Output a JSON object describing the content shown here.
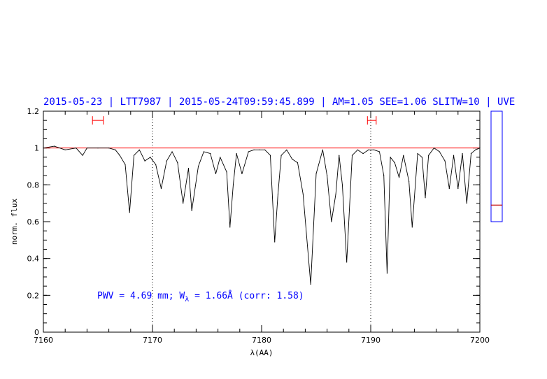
{
  "chart_data": {
    "type": "line",
    "title": "2015-05-23 | LTT7987 | 2015-05-24T09:59:45.899 | AM=1.05 SEE=1.06 SLITW=10 | UVE",
    "xlabel": "λ(AA)",
    "ylabel": "norm. flux",
    "xlim": [
      7160,
      7200
    ],
    "ylim": [
      0,
      1.2
    ],
    "x_ticks": [
      "7160",
      "7170",
      "7180",
      "7190",
      "7200"
    ],
    "y_ticks": [
      "0",
      "0.2",
      "0.4",
      "0.6",
      "0.8",
      "1",
      "1.2"
    ],
    "annotation": {
      "prefix": "PWV = 4.69 mm; W",
      "subscript": "λ",
      "suffix": " = 1.66Å (corr: 1.58)"
    },
    "vertical_dotted_lines_x": [
      7170,
      7190
    ],
    "continuum_level": 1.0,
    "error_bars": [
      {
        "x_low": 7164.5,
        "x_high": 7165.5,
        "y": 1.15
      },
      {
        "x_low": 7189.7,
        "x_high": 7190.5,
        "y": 1.15
      }
    ],
    "series": [
      {
        "x": [
          7160.0,
          7161.0,
          7162.0,
          7163.0,
          7163.6,
          7164.0,
          7165.0,
          7166.0,
          7166.6,
          7167.0,
          7167.5,
          7167.9,
          7168.3,
          7168.8,
          7169.3,
          7169.8,
          7170.3,
          7170.8,
          7171.3,
          7171.8,
          7172.3,
          7172.8,
          7173.3,
          7173.6,
          7174.2,
          7174.7,
          7175.3,
          7175.8,
          7176.2,
          7176.8,
          7177.1,
          7177.4,
          7177.7,
          7178.2,
          7178.8,
          7179.3,
          7179.8,
          7180.3,
          7180.8,
          7181.2,
          7181.5,
          7181.8,
          7182.3,
          7182.8,
          7183.3,
          7183.8,
          7184.5,
          7185.0,
          7185.6,
          7186.0,
          7186.4,
          7186.8,
          7187.1,
          7187.4,
          7187.8,
          7188.3,
          7188.8,
          7189.3,
          7189.8,
          7190.3,
          7190.8,
          7191.2,
          7191.5,
          7191.8,
          7192.2,
          7192.6,
          7193.0,
          7193.5,
          7193.8,
          7194.3,
          7194.7,
          7195.0,
          7195.3,
          7195.8,
          7196.3,
          7196.8,
          7197.2,
          7197.6,
          7198.0,
          7198.4,
          7198.8,
          7199.2,
          7199.6,
          7200.0
        ],
        "values": [
          1.0,
          1.01,
          0.99,
          1.0,
          0.96,
          1.0,
          1.0,
          1.0,
          0.99,
          0.96,
          0.91,
          0.65,
          0.96,
          0.99,
          0.93,
          0.95,
          0.91,
          0.78,
          0.93,
          0.98,
          0.92,
          0.7,
          0.89,
          0.66,
          0.9,
          0.98,
          0.97,
          0.86,
          0.95,
          0.87,
          0.57,
          0.8,
          0.97,
          0.86,
          0.98,
          0.99,
          0.99,
          0.99,
          0.96,
          0.49,
          0.75,
          0.96,
          0.99,
          0.94,
          0.92,
          0.75,
          0.26,
          0.86,
          0.99,
          0.85,
          0.6,
          0.75,
          0.96,
          0.8,
          0.38,
          0.96,
          0.99,
          0.97,
          0.99,
          0.99,
          0.98,
          0.85,
          0.32,
          0.95,
          0.92,
          0.84,
          0.96,
          0.82,
          0.57,
          0.97,
          0.95,
          0.73,
          0.96,
          1.0,
          0.98,
          0.93,
          0.78,
          0.96,
          0.78,
          0.97,
          0.7,
          0.97,
          0.99,
          1.0
        ]
      }
    ],
    "side_panel": {
      "ymin": 0.0,
      "ymax": 1.0,
      "marker": 0.15
    },
    "colors": {
      "title": "#0000ff",
      "annotation": "#0000ff",
      "spectrum": "#000000",
      "continuum": "#ff0000",
      "error_bars": "#ff0000",
      "side_panel_border": "#0000ff",
      "side_panel_marker": "#c00000"
    }
  }
}
